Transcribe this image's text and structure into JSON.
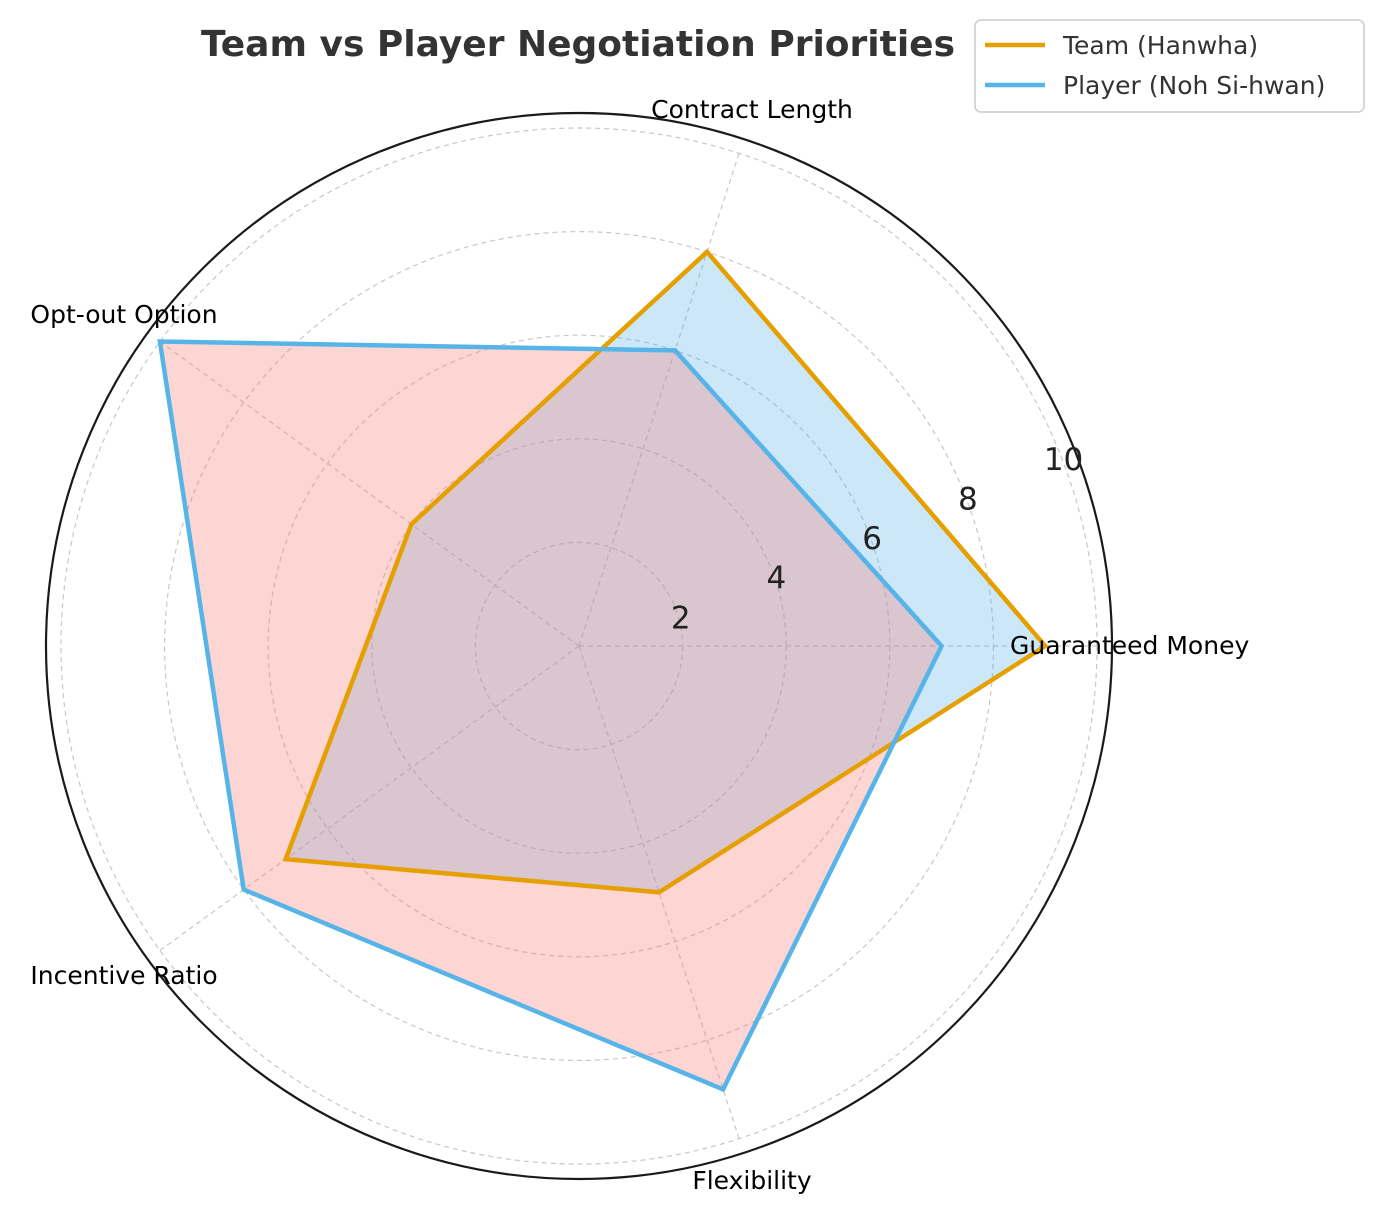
{
  "chart_data": {
    "type": "radar",
    "title": "Team vs Player Negotiation Priorities",
    "categories": [
      "Guaranteed Money",
      "Contract Length",
      "Opt-out Option",
      "Incentive Ratio",
      "Flexibility"
    ],
    "rlim": [
      0,
      10
    ],
    "rticks": [
      2,
      4,
      6,
      8,
      10
    ],
    "grid": true,
    "legend_position": "top-right",
    "series": [
      {
        "name": "Team (Hanwha)",
        "values": [
          9,
          8,
          4,
          7,
          5
        ],
        "color": "#E69F00",
        "fill": "#56B4E9"
      },
      {
        "name": "Player (Noh Si-hwan)",
        "values": [
          7,
          6,
          10,
          8,
          9
        ],
        "color": "#56B4E9",
        "fill": "#F8766D"
      }
    ]
  }
}
